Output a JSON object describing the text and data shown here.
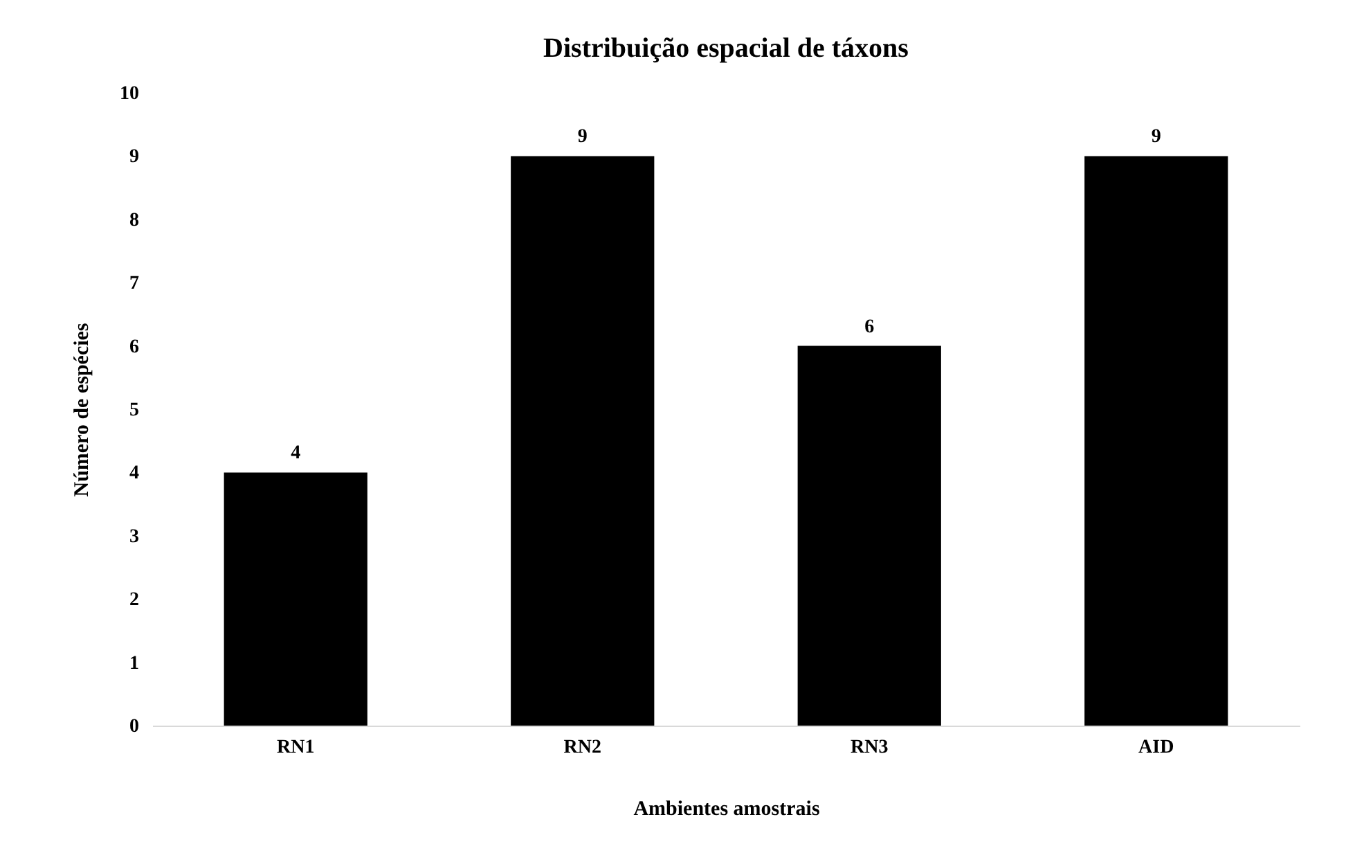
{
  "chart_data": {
    "type": "bar",
    "title": "Distribuição espacial de táxons",
    "xlabel": "Ambientes amostrais",
    "ylabel": "Número de espécies",
    "categories": [
      "RN1",
      "RN2",
      "RN3",
      "AID"
    ],
    "values": [
      4,
      9,
      6,
      9
    ],
    "color": "#000000",
    "ylim": [
      0,
      10
    ],
    "yticks": [
      0,
      1,
      2,
      3,
      4,
      5,
      6,
      7,
      8,
      9,
      10
    ],
    "grid": false,
    "data_labels": true
  }
}
